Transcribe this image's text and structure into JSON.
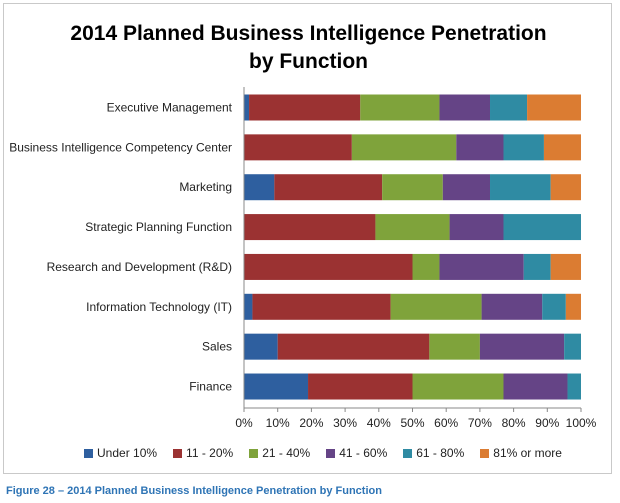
{
  "caption": "Figure 28 – 2014 Planned Business Intelligence Penetration by Function",
  "chart_data": {
    "type": "bar",
    "orientation": "horizontal",
    "stacked": "100%",
    "title_lines": [
      "2014 Planned Business Intelligence Penetration",
      "by Function"
    ],
    "categories": [
      "Executive Management",
      "Business Intelligence Competency Center",
      "Marketing",
      "Strategic Planning Function",
      "Research and Development (R&D)",
      "Information Technology (IT)",
      "Sales",
      "Finance"
    ],
    "series": [
      {
        "name": "Under 10%",
        "color": "#2e5f9f",
        "values": [
          1.5,
          0,
          9,
          0,
          0,
          2.5,
          10,
          19
        ]
      },
      {
        "name": "11 - 20%",
        "color": "#9b3232",
        "values": [
          33,
          32,
          32,
          39,
          50,
          41,
          45,
          31
        ]
      },
      {
        "name": "21 - 40%",
        "color": "#7fa33b",
        "values": [
          23.5,
          31,
          18,
          22,
          8,
          27,
          15,
          27
        ]
      },
      {
        "name": "41 - 60%",
        "color": "#654486",
        "values": [
          15,
          14,
          14,
          16,
          25,
          18,
          25,
          19
        ]
      },
      {
        "name": "61 - 80%",
        "color": "#2f8ba3",
        "values": [
          11,
          12,
          18,
          23,
          8,
          7,
          5,
          4
        ]
      },
      {
        "name": "81% or more",
        "color": "#db7c32",
        "values": [
          16,
          11,
          9,
          0,
          9,
          4.5,
          0,
          0
        ]
      }
    ],
    "x_ticks": [
      "0%",
      "10%",
      "20%",
      "30%",
      "40%",
      "50%",
      "60%",
      "70%",
      "80%",
      "90%",
      "100%"
    ],
    "xlim": [
      0,
      100
    ],
    "grid": false,
    "legend_position": "bottom"
  }
}
